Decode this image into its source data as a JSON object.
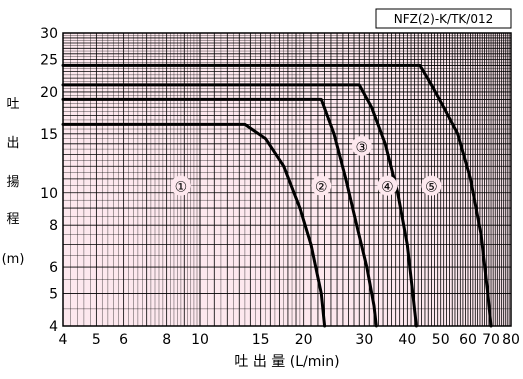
{
  "chart_data": {
    "type": "line",
    "title": "",
    "model_label": "NFZ(2)-K/TK/012",
    "xlabel": "吐 出 量 (L/min)",
    "ylabel_chars": [
      "吐",
      "出",
      "揚",
      "程",
      "(m)"
    ],
    "xscale": "log",
    "yscale": "log",
    "xlim": [
      4,
      80
    ],
    "ylim": [
      4,
      30
    ],
    "x_ticks": [
      4,
      5,
      6,
      8,
      10,
      15,
      20,
      30,
      40,
      50,
      60,
      70,
      80
    ],
    "y_ticks": [
      4,
      5,
      6,
      8,
      10,
      15,
      20,
      25,
      30
    ],
    "grid": true,
    "background_color": "#fde8ee",
    "curve_color": "#000000",
    "series": [
      {
        "name": "①",
        "x": [
          4,
          13.5,
          15.5,
          17.5,
          19.5,
          21,
          22.5,
          23
        ],
        "y": [
          16,
          16,
          14.5,
          12,
          9,
          7,
          5,
          4
        ]
      },
      {
        "name": "②",
        "x": [
          4,
          22.5,
          24.5,
          26.5,
          28.5,
          30.5,
          32,
          32.5
        ],
        "y": [
          19,
          19,
          15,
          11,
          8,
          6,
          4.6,
          4
        ]
      },
      {
        "name": "③",
        "x": [
          4,
          29,
          31.5,
          34.5,
          37.5,
          40,
          41.5,
          42.5
        ],
        "y": [
          21,
          21,
          18,
          14,
          10,
          7,
          5,
          4
        ]
      },
      {
        "name": "④",
        "x": [
          4,
          43.5,
          47,
          51,
          56,
          61,
          65.5,
          68.5,
          70
        ],
        "y": [
          24,
          24,
          21,
          18,
          15,
          11,
          7.5,
          5,
          4
        ]
      }
    ],
    "curve_labels": [
      {
        "text": "①",
        "x": 8.8,
        "y": 10.5
      },
      {
        "text": "②",
        "x": 22.5,
        "y": 10.5
      },
      {
        "text": "③",
        "x": 29.5,
        "y": 13.8
      },
      {
        "text": "④",
        "x": 35,
        "y": 10.5
      },
      {
        "text": "⑤",
        "x": 47,
        "y": 10.5
      }
    ]
  }
}
